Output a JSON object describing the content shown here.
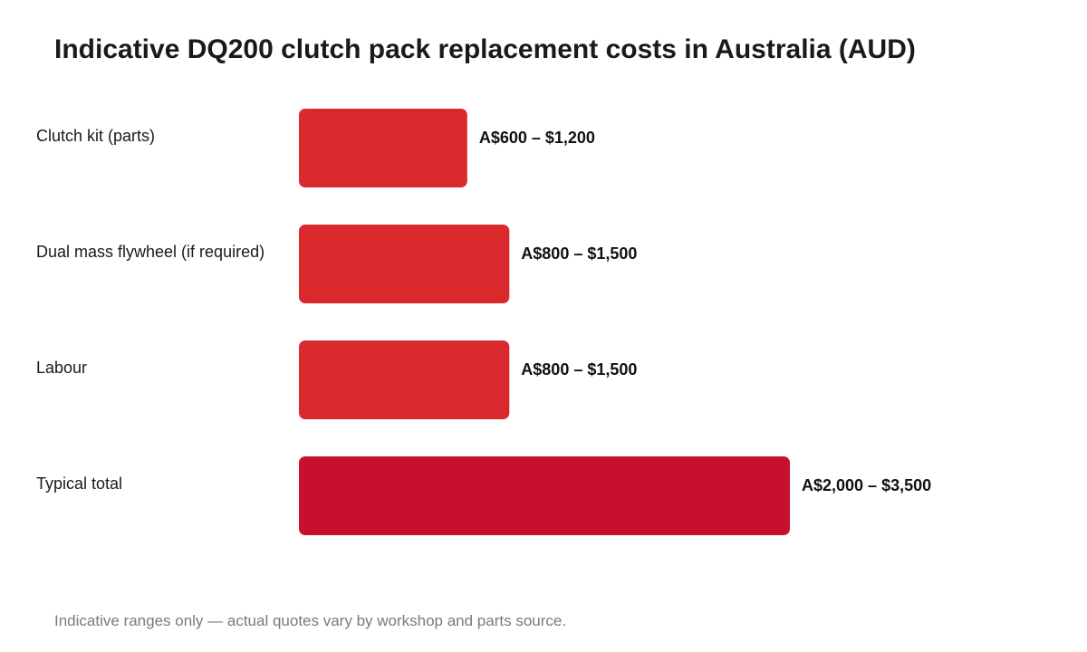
{
  "title": "Indicative DQ200 clutch pack replacement costs in Australia (AUD)",
  "footnote": "Indicative ranges only — actual quotes vary by workshop and parts source.",
  "colors": {
    "component_bar": "#d9292d",
    "total_bar": "#c8102e"
  },
  "chart_data": {
    "type": "bar",
    "orientation": "horizontal",
    "title": "Indicative DQ200 clutch pack replacement costs in Australia (AUD)",
    "categories": [
      "Clutch kit (parts)",
      "Dual mass flywheel (if required)",
      "Labour",
      "Typical total"
    ],
    "ranges": [
      {
        "low": 600,
        "high": 1200
      },
      {
        "low": 800,
        "high": 1500
      },
      {
        "low": 800,
        "high": 1500
      },
      {
        "low": 2000,
        "high": 3500
      }
    ],
    "values": [
      1200,
      1500,
      1500,
      3500
    ],
    "value_labels": [
      "A$600 – $1,200",
      "A$800 – $1,500",
      "A$800 – $1,500",
      "A$2,000 – $3,500"
    ],
    "highlight": [
      false,
      false,
      false,
      true
    ],
    "xlabel": "",
    "ylabel": "",
    "grid": false,
    "legend": "none"
  }
}
